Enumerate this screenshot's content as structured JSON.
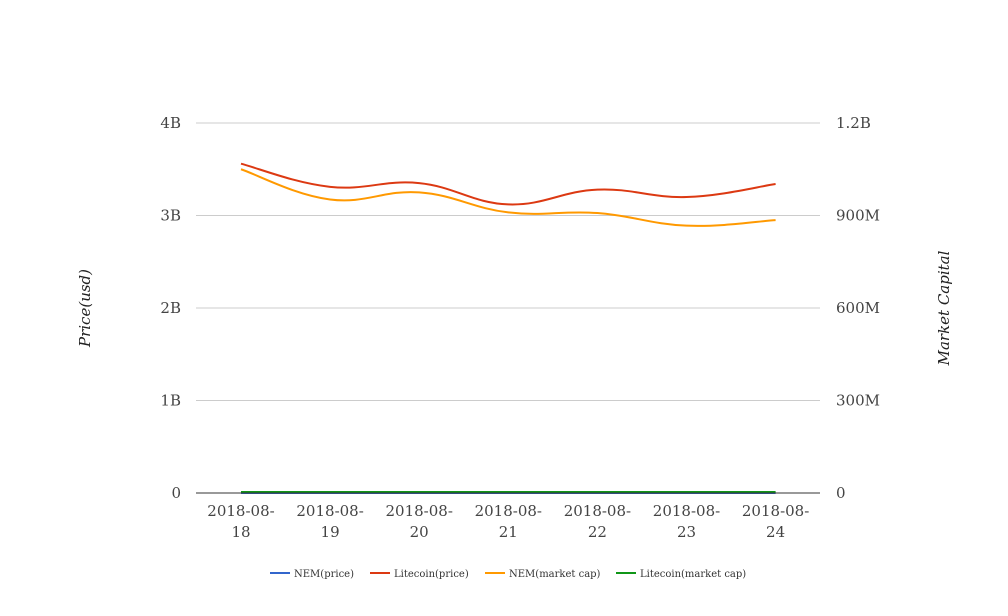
{
  "chart_data": {
    "type": "line",
    "categories": [
      "2018-08-18",
      "2018-08-19",
      "2018-08-20",
      "2018-08-21",
      "2018-08-22",
      "2018-08-23",
      "2018-08-24"
    ],
    "category_label_lines": [
      [
        "2018-08-",
        "18"
      ],
      [
        "2018-08-",
        "19"
      ],
      [
        "2018-08-",
        "20"
      ],
      [
        "2018-08-",
        "21"
      ],
      [
        "2018-08-",
        "22"
      ],
      [
        "2018-08-",
        "23"
      ],
      [
        "2018-08-",
        "24"
      ]
    ],
    "y_left": {
      "label": "Price(usd)",
      "ylim": [
        0,
        4000000000
      ],
      "ticks": [
        0,
        1000000000,
        2000000000,
        3000000000,
        4000000000
      ],
      "tick_labels": [
        "0",
        "1B",
        "2B",
        "3B",
        "4B"
      ]
    },
    "y_right": {
      "label": "Market Capital",
      "ylim": [
        0,
        1200000000
      ],
      "ticks": [
        0,
        300000000,
        600000000,
        900000000,
        1200000000
      ],
      "tick_labels": [
        "0",
        "300M",
        "600M",
        "900M",
        "1.2B"
      ]
    },
    "series": [
      {
        "name": "NEM(price)",
        "axis": "left",
        "color": "#3366cc",
        "values": [
          0.1,
          0.1,
          0.1,
          0.1,
          0.1,
          0.1,
          0.1
        ]
      },
      {
        "name": "Litecoin(price)",
        "axis": "left",
        "color": "#dc3912",
        "values": [
          3560000000,
          3310000000,
          3350000000,
          3120000000,
          3280000000,
          3200000000,
          3340000000
        ]
      },
      {
        "name": "NEM(market cap)",
        "axis": "right",
        "color": "#ff9900",
        "values": [
          1050000000,
          952000000,
          975000000,
          910000000,
          908000000,
          867000000,
          885000000
        ]
      },
      {
        "name": "Litecoin(market cap)",
        "axis": "right",
        "color": "#109618",
        "values": [
          3300000,
          3300000,
          3300000,
          3300000,
          3300000,
          3300000,
          3300000
        ]
      }
    ],
    "grid": true,
    "legend_position": "bottom"
  }
}
